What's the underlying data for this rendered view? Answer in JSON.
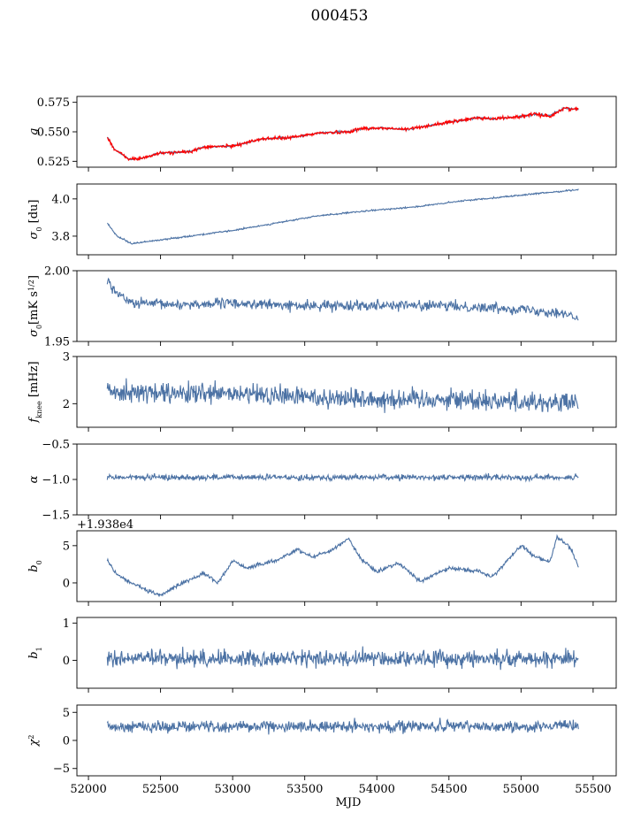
{
  "figure": {
    "title": "000453"
  },
  "colors": {
    "series": "#4c72a4",
    "overlay": "#ff0000",
    "axis": "#000000"
  },
  "chart_data": [
    {
      "type": "line",
      "key": "g",
      "ylabel": "g",
      "ylim": [
        0.52,
        0.58
      ],
      "yticks": [
        0.525,
        0.55,
        0.575
      ],
      "yticklabels": [
        "0.525",
        "0.550",
        "0.575"
      ],
      "series_knots": [
        [
          52130,
          0.546
        ],
        [
          52180,
          0.535
        ],
        [
          52280,
          0.527
        ],
        [
          52350,
          0.527
        ],
        [
          52500,
          0.532
        ],
        [
          52700,
          0.533
        ],
        [
          52800,
          0.537
        ],
        [
          53000,
          0.538
        ],
        [
          53100,
          0.541
        ],
        [
          53200,
          0.544
        ],
        [
          53400,
          0.545
        ],
        [
          53600,
          0.549
        ],
        [
          53800,
          0.55
        ],
        [
          53900,
          0.553
        ],
        [
          54050,
          0.553
        ],
        [
          54200,
          0.552
        ],
        [
          54400,
          0.556
        ],
        [
          54600,
          0.56
        ],
        [
          54700,
          0.562
        ],
        [
          54800,
          0.561
        ],
        [
          55000,
          0.563
        ],
        [
          55100,
          0.565
        ],
        [
          55200,
          0.564
        ],
        [
          55300,
          0.57
        ],
        [
          55400,
          0.569
        ]
      ],
      "noise": 0.0008,
      "overlay_knots": [
        [
          52130,
          0.546
        ],
        [
          52180,
          0.535
        ],
        [
          52280,
          0.527
        ],
        [
          52350,
          0.527
        ],
        [
          52500,
          0.532
        ],
        [
          52700,
          0.533
        ],
        [
          52800,
          0.537
        ],
        [
          53000,
          0.538
        ],
        [
          53100,
          0.541
        ],
        [
          53200,
          0.544
        ],
        [
          53400,
          0.545
        ],
        [
          53600,
          0.549
        ],
        [
          53800,
          0.55
        ],
        [
          53900,
          0.553
        ],
        [
          54050,
          0.553
        ],
        [
          54200,
          0.552
        ],
        [
          54400,
          0.556
        ],
        [
          54600,
          0.56
        ],
        [
          54700,
          0.562
        ],
        [
          54800,
          0.561
        ],
        [
          55000,
          0.563
        ],
        [
          55100,
          0.565
        ],
        [
          55200,
          0.563
        ],
        [
          55300,
          0.57
        ],
        [
          55400,
          0.569
        ]
      ],
      "overlay_noise": 0.0014
    },
    {
      "type": "line",
      "key": "sigma0",
      "ylabel": "σ₀ [du]",
      "ylim": [
        3.7,
        4.08
      ],
      "yticks": [
        3.8,
        4.0
      ],
      "yticklabels": [
        "3.8",
        "4.0"
      ],
      "series_knots": [
        [
          52130,
          3.87
        ],
        [
          52200,
          3.8
        ],
        [
          52300,
          3.76
        ],
        [
          52400,
          3.77
        ],
        [
          52500,
          3.78
        ],
        [
          52700,
          3.8
        ],
        [
          53000,
          3.83
        ],
        [
          53300,
          3.87
        ],
        [
          53600,
          3.91
        ],
        [
          54000,
          3.94
        ],
        [
          54300,
          3.96
        ],
        [
          54600,
          3.99
        ],
        [
          55000,
          4.02
        ],
        [
          55400,
          4.05
        ]
      ],
      "noise": 0.004
    },
    {
      "type": "line",
      "key": "sigma0_mk",
      "ylabel": "σ₀[mK s^1/2]",
      "ylim": [
        1.95,
        2.0
      ],
      "yticks": [
        1.95,
        2.0
      ],
      "yticklabels": [
        "1.95",
        "2.00"
      ],
      "series_knots": [
        [
          52130,
          1.994
        ],
        [
          52200,
          1.984
        ],
        [
          52300,
          1.977
        ],
        [
          52600,
          1.976
        ],
        [
          53000,
          1.977
        ],
        [
          53500,
          1.975
        ],
        [
          54000,
          1.976
        ],
        [
          54500,
          1.975
        ],
        [
          55000,
          1.973
        ],
        [
          55300,
          1.97
        ],
        [
          55400,
          1.965
        ]
      ],
      "noise": 0.0035
    },
    {
      "type": "line",
      "key": "fknee",
      "ylabel": "f_knee [mHz]",
      "ylim": [
        1.5,
        3.0
      ],
      "yticks": [
        2,
        3
      ],
      "yticklabels": [
        "2",
        "3"
      ],
      "series_knots": [
        [
          52130,
          2.3
        ],
        [
          52500,
          2.2
        ],
        [
          53000,
          2.2
        ],
        [
          53500,
          2.15
        ],
        [
          54000,
          2.1
        ],
        [
          54500,
          2.1
        ],
        [
          55000,
          2.05
        ],
        [
          55400,
          2.0
        ]
      ],
      "noise": 0.22
    },
    {
      "type": "line",
      "key": "alpha",
      "ylabel": "α",
      "ylim": [
        -1.5,
        -0.5
      ],
      "yticks": [
        -1.5,
        -1.0,
        -0.5
      ],
      "yticklabels": [
        "−1.5",
        "−1.0",
        "−0.5"
      ],
      "series_knots": [
        [
          52130,
          -0.97
        ],
        [
          55400,
          -0.97
        ]
      ],
      "noise": 0.04
    },
    {
      "type": "line",
      "key": "b0",
      "ylabel": "b₀",
      "offset_label": "+1.938e4",
      "ylim": [
        -2.5,
        7.0
      ],
      "yticks": [
        0,
        5
      ],
      "yticklabels": [
        "0",
        "5"
      ],
      "series_knots": [
        [
          52130,
          3.0
        ],
        [
          52200,
          1.0
        ],
        [
          52300,
          0.0
        ],
        [
          52400,
          -1.0
        ],
        [
          52500,
          -1.7
        ],
        [
          52600,
          -0.5
        ],
        [
          52800,
          1.3
        ],
        [
          52900,
          0.0
        ],
        [
          53000,
          3.0
        ],
        [
          53100,
          2.0
        ],
        [
          53300,
          3.0
        ],
        [
          53450,
          4.5
        ],
        [
          53550,
          3.5
        ],
        [
          53700,
          4.5
        ],
        [
          53800,
          6.0
        ],
        [
          53900,
          3.0
        ],
        [
          54000,
          1.5
        ],
        [
          54150,
          2.7
        ],
        [
          54300,
          0.2
        ],
        [
          54500,
          2.0
        ],
        [
          54700,
          1.6
        ],
        [
          54800,
          0.8
        ],
        [
          55000,
          5.0
        ],
        [
          55100,
          3.5
        ],
        [
          55200,
          2.8
        ],
        [
          55250,
          6.2
        ],
        [
          55350,
          4.5
        ],
        [
          55400,
          2.0
        ]
      ],
      "noise": 0.25
    },
    {
      "type": "line",
      "key": "b1",
      "ylabel": "b₁",
      "ylim": [
        -0.75,
        1.15
      ],
      "yticks": [
        0,
        1
      ],
      "yticklabels": [
        "0",
        "1"
      ],
      "series_knots": [
        [
          52130,
          0.05
        ],
        [
          55400,
          0.05
        ]
      ],
      "noise": 0.22
    },
    {
      "type": "line",
      "key": "chi2",
      "ylabel": "χ²",
      "xlabel": "MJD",
      "ylim": [
        -6.3,
        6.3
      ],
      "yticks": [
        -5,
        0,
        5
      ],
      "yticklabels": [
        "−5",
        "0",
        "5"
      ],
      "series_knots": [
        [
          52130,
          2.5
        ],
        [
          55400,
          2.5
        ]
      ],
      "noise": 1.0
    }
  ],
  "xaxis": {
    "label": "MJD",
    "xlim": [
      51920,
      55660
    ],
    "ticks": [
      52000,
      52500,
      53000,
      53500,
      54000,
      54500,
      55000,
      55500
    ],
    "ticklabels": [
      "52000",
      "52500",
      "53000",
      "53500",
      "54000",
      "54500",
      "55000",
      "55500"
    ],
    "data_range": [
      52130,
      55400
    ]
  }
}
